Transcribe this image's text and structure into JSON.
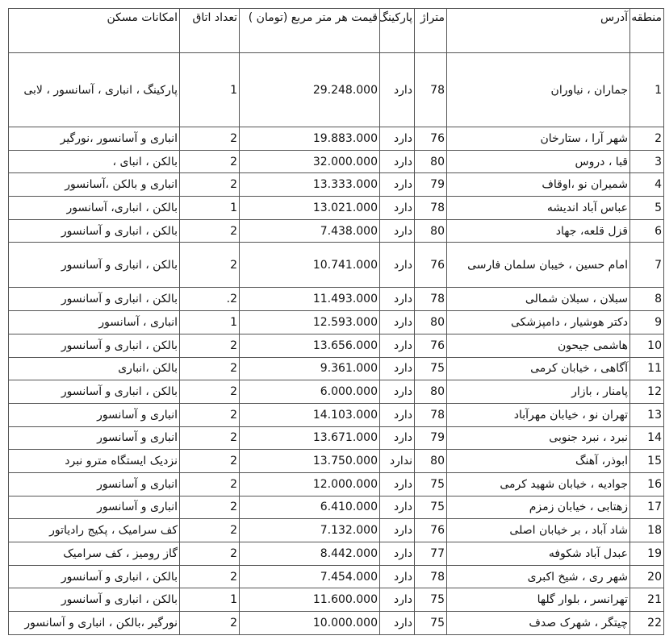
{
  "headers": [
    "منطقه",
    "آدرس",
    "متراژ",
    "پارکینگ",
    "قیمت هر متر مربع (تومان )",
    "تعداد اتاق",
    "امکانات مسکن"
  ],
  "rows": [
    [
      "1",
      "جماران ، نیاوران",
      "78",
      "دارد",
      "29.248.000",
      "1",
      "پارکینگ ، انباری ، آسانسور ، لابی"
    ],
    [
      "2",
      "شهر آرا ، ستارخان",
      "76",
      "دارد",
      "19.883.000",
      "2",
      "انباری و آسانسور ،نورگیر"
    ],
    [
      "3",
      "قبا ، دروس",
      "80",
      "دارد",
      "32.000.000",
      "2",
      "بالکن ، انبای ،"
    ],
    [
      "4",
      "شمیران نو ،اوقاف",
      "79",
      "دارد",
      "13.333.000",
      "2",
      "انباری و بالکن ،آسانسور"
    ],
    [
      "5",
      "عباس آباد اندیشه",
      "78",
      "دارد",
      "13.021.000",
      "1",
      "بالکن ، انباری، آسانسور"
    ],
    [
      "6",
      "قزل قلعه، جهاد",
      "80",
      "دارد",
      "7.438.000",
      "2",
      "بالکن ، انباری و آسانسور"
    ],
    [
      "7",
      "امام حسین ، خیبان سلمان فارسی",
      "76",
      "دارد",
      "10.741.000",
      "2",
      "بالکن ، انباری و آسانسور"
    ],
    [
      "8",
      "سبلان ، سبلان شمالی",
      "78",
      "دارد",
      "11.493.000",
      "2.",
      "بالکن ، انباری و آسانسور"
    ],
    [
      "9",
      "دکتر هوشیار ، دامپزشکی",
      "80",
      "دارد",
      "12.593.000",
      "1",
      "انباری ، آسانسور"
    ],
    [
      "10",
      "هاشمی جیحون",
      "76",
      "دارد",
      "13.656.000",
      "2",
      "بالکن ، انباری و آسانسور"
    ],
    [
      "11",
      "آگاهی ، خیابان کرمی",
      "75",
      "دارد",
      "9.361.000",
      "2",
      "بالکن ،انباری"
    ],
    [
      "12",
      "پامنار ، بازار",
      "80",
      "دارد",
      "6.000.000",
      "2",
      "بالکن ، انباری و آسانسور"
    ],
    [
      "13",
      "تهران نو ، خیابان مهرآباد",
      "78",
      "دارد",
      "14.103.000",
      "2",
      "انباری و آسانسور"
    ],
    [
      "14",
      "نبرد ، نبرد جنوبی",
      "79",
      "دارد",
      "13.671.000",
      "2",
      "انباری و آسانسور"
    ],
    [
      "15",
      "ابوذر، آهنگ",
      "80",
      "ندارد",
      "13.750.000",
      "2",
      "نزدیک ایستگاه مترو نبرد"
    ],
    [
      "16",
      "جوادیه ، خیابان شهید کرمی",
      "75",
      "دارد",
      "12.000.000",
      "2",
      "انباری و آسانسور"
    ],
    [
      "17",
      "زهتابی ، خیابان زمزم",
      "75",
      "دارد",
      "6.410.000",
      "2",
      "انباری و آسانسور"
    ],
    [
      "18",
      "شاد آباد ، بر خیابان اصلی",
      "76",
      "دارد",
      "7.132.000",
      "2",
      "کف سرامیک ، پکیج رادیاتور"
    ],
    [
      "19",
      "عبدل آباد شکوفه",
      "77",
      "دارد",
      "8.442.000",
      "2",
      "گاز رومیز ، کف سرامیک"
    ],
    [
      "20",
      "شهر ری ، شیخ اکبری",
      "78",
      "دارد",
      "7.454.000",
      "2",
      "بالکن ، انباری و آسانسور"
    ],
    [
      "21",
      "تهرانسر ، بلوار گلها",
      "75",
      "دارد",
      "11.600.000",
      "1",
      "بالکن ، انباری و آسانسور"
    ],
    [
      "22",
      "چیتگر ، شهرک صدف",
      "75",
      "دارد",
      "10.000.000",
      "2",
      "نورگیر ،بالکن ، انباری و آسانسور"
    ]
  ]
}
